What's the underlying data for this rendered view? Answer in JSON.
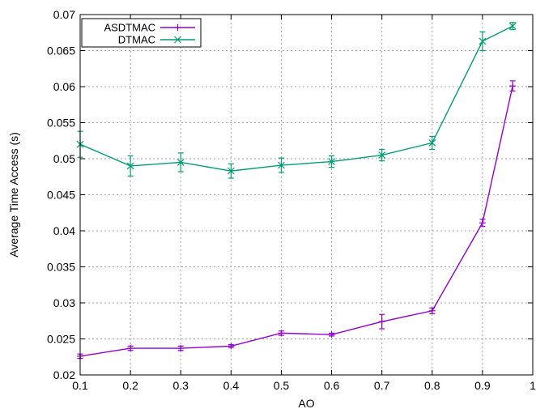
{
  "chart_data": {
    "type": "line",
    "title": "",
    "xlabel": "AO",
    "ylabel": "Average Time Access (s)",
    "xlim": [
      0.1,
      1
    ],
    "ylim": [
      0.02,
      0.07
    ],
    "x_ticks": [
      "0.1",
      "0.2",
      "0.3",
      "0.4",
      "0.5",
      "0.6",
      "0.7",
      "0.8",
      "0.9",
      "1"
    ],
    "y_ticks": [
      "0.02",
      "0.025",
      "0.03",
      "0.035",
      "0.04",
      "0.045",
      "0.05",
      "0.055",
      "0.06",
      "0.065",
      "0.07"
    ],
    "grid": true,
    "legend_position": "top-left",
    "x": [
      0.1,
      0.2,
      0.3,
      0.4,
      0.5,
      0.6,
      0.7,
      0.8,
      0.9,
      0.96
    ],
    "series": [
      {
        "name": "ASDTMAC",
        "color": "#9400d3",
        "marker": "+",
        "values": [
          0.0226,
          0.0237,
          0.0237,
          0.024,
          0.0258,
          0.0256,
          0.0274,
          0.0289,
          0.0411,
          0.0601
        ],
        "errors": [
          0.0003,
          0.0003,
          0.0003,
          0.0002,
          0.0003,
          0.0002,
          0.001,
          0.0004,
          0.0005,
          0.0007
        ]
      },
      {
        "name": "DTMAC",
        "color": "#009e73",
        "marker": "x",
        "values": [
          0.052,
          0.049,
          0.0495,
          0.0483,
          0.0491,
          0.0496,
          0.0505,
          0.0522,
          0.0663,
          0.0684
        ],
        "errors": [
          0.0018,
          0.0014,
          0.0013,
          0.001,
          0.001,
          0.0008,
          0.0008,
          0.0009,
          0.0013,
          0.0005
        ]
      }
    ]
  }
}
